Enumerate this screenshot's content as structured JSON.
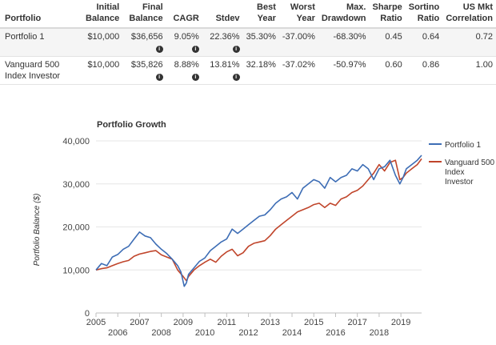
{
  "table": {
    "headers": [
      {
        "line1": "",
        "line2": "Portfolio"
      },
      {
        "line1": "Initial",
        "line2": "Balance"
      },
      {
        "line1": "Final",
        "line2": "Balance"
      },
      {
        "line1": "",
        "line2": "CAGR"
      },
      {
        "line1": "",
        "line2": "Stdev"
      },
      {
        "line1": "Best",
        "line2": "Year"
      },
      {
        "line1": "Worst",
        "line2": "Year"
      },
      {
        "line1": "Max.",
        "line2": "Drawdown"
      },
      {
        "line1": "Sharpe",
        "line2": "Ratio"
      },
      {
        "line1": "Sortino",
        "line2": "Ratio"
      },
      {
        "line1": "US Mkt",
        "line2": "Correlation"
      }
    ],
    "info_icon": "info-circle-icon",
    "rows": [
      {
        "name": "Portfolio 1",
        "initial": "$10,000",
        "final": "$36,656",
        "cagr": "9.05%",
        "stdev": "22.36%",
        "best": "35.30%",
        "worst": "-37.00%",
        "drawdown": "-68.30%",
        "sharpe": "0.45",
        "sortino": "0.64",
        "corr": "0.72"
      },
      {
        "name": "Vanguard 500 Index Investor",
        "initial": "$10,000",
        "final": "$35,826",
        "cagr": "8.88%",
        "stdev": "13.81%",
        "best": "32.18%",
        "worst": "-37.02%",
        "drawdown": "-50.97%",
        "sharpe": "0.60",
        "sortino": "0.86",
        "corr": "1.00"
      }
    ]
  },
  "chart_data": {
    "type": "line",
    "title": "Portfolio Growth",
    "ylabel": "Portfolio Balance ($)",
    "xlabel": "",
    "xlim": [
      2005.0,
      2019.95
    ],
    "ylim": [
      0,
      40000
    ],
    "yticks": [
      0,
      10000,
      20000,
      30000,
      40000
    ],
    "ytick_labels": [
      "0",
      "10,000",
      "20,000",
      "30,000",
      "40,000"
    ],
    "xticks": [
      2005,
      2006,
      2007,
      2008,
      2009,
      2010,
      2011,
      2012,
      2013,
      2014,
      2015,
      2016,
      2017,
      2018,
      2019
    ],
    "grid": true,
    "legend": "right",
    "series": [
      {
        "name": "Portfolio 1",
        "color": "#3d6db5",
        "x": [
          2005.0,
          2005.25,
          2005.5,
          2005.75,
          2006.0,
          2006.25,
          2006.5,
          2006.75,
          2007.0,
          2007.25,
          2007.5,
          2007.75,
          2008.0,
          2008.25,
          2008.5,
          2008.75,
          2008.9,
          2009.05,
          2009.15,
          2009.25,
          2009.5,
          2009.75,
          2010.0,
          2010.25,
          2010.5,
          2010.75,
          2011.0,
          2011.25,
          2011.5,
          2011.75,
          2012.0,
          2012.25,
          2012.5,
          2012.75,
          2013.0,
          2013.25,
          2013.5,
          2013.75,
          2014.0,
          2014.25,
          2014.5,
          2014.75,
          2015.0,
          2015.25,
          2015.5,
          2015.75,
          2016.0,
          2016.25,
          2016.5,
          2016.75,
          2017.0,
          2017.25,
          2017.5,
          2017.75,
          2018.0,
          2018.25,
          2018.5,
          2018.75,
          2018.95,
          2019.1,
          2019.25,
          2019.5,
          2019.75,
          2019.95
        ],
        "y": [
          10000,
          11500,
          11000,
          13000,
          13600,
          14800,
          15500,
          17200,
          18800,
          17900,
          17500,
          16000,
          14800,
          13800,
          12500,
          11000,
          9500,
          6200,
          7000,
          9000,
          10500,
          12000,
          12800,
          14500,
          15500,
          16500,
          17200,
          19500,
          18500,
          19500,
          20500,
          21500,
          22500,
          22800,
          24000,
          25500,
          26500,
          27000,
          28000,
          26500,
          29000,
          30000,
          31000,
          30500,
          29000,
          31500,
          30500,
          31500,
          32000,
          33500,
          33000,
          34500,
          33500,
          31000,
          33500,
          34000,
          35500,
          32000,
          30000,
          31500,
          33500,
          34500,
          35500,
          36656
        ]
      },
      {
        "name": "Vanguard 500 Index Investor",
        "color": "#c0452b",
        "x": [
          2005.0,
          2005.25,
          2005.5,
          2005.75,
          2006.0,
          2006.25,
          2006.5,
          2006.75,
          2007.0,
          2007.25,
          2007.5,
          2007.75,
          2008.0,
          2008.25,
          2008.5,
          2008.75,
          2009.0,
          2009.15,
          2009.25,
          2009.5,
          2009.75,
          2010.0,
          2010.25,
          2010.5,
          2010.75,
          2011.0,
          2011.25,
          2011.5,
          2011.75,
          2012.0,
          2012.25,
          2012.5,
          2012.75,
          2013.0,
          2013.25,
          2013.5,
          2013.75,
          2014.0,
          2014.25,
          2014.5,
          2014.75,
          2015.0,
          2015.25,
          2015.5,
          2015.75,
          2016.0,
          2016.25,
          2016.5,
          2016.75,
          2017.0,
          2017.25,
          2017.5,
          2017.75,
          2018.0,
          2018.25,
          2018.5,
          2018.75,
          2018.95,
          2019.1,
          2019.25,
          2019.5,
          2019.75,
          2019.95
        ],
        "y": [
          10000,
          10300,
          10500,
          11000,
          11500,
          11900,
          12200,
          13200,
          13700,
          14000,
          14300,
          14500,
          13500,
          13000,
          12500,
          10000,
          8500,
          7500,
          8500,
          10000,
          11000,
          11800,
          12500,
          11800,
          13200,
          14200,
          14800,
          13300,
          14000,
          15500,
          16200,
          16500,
          16800,
          18000,
          19500,
          20500,
          21500,
          22500,
          23500,
          24000,
          24500,
          25200,
          25500,
          24500,
          25500,
          25000,
          26500,
          27000,
          28000,
          28500,
          29500,
          31000,
          32500,
          34500,
          33000,
          35000,
          35500,
          31000,
          31500,
          32500,
          33500,
          34500,
          35826
        ]
      }
    ]
  }
}
